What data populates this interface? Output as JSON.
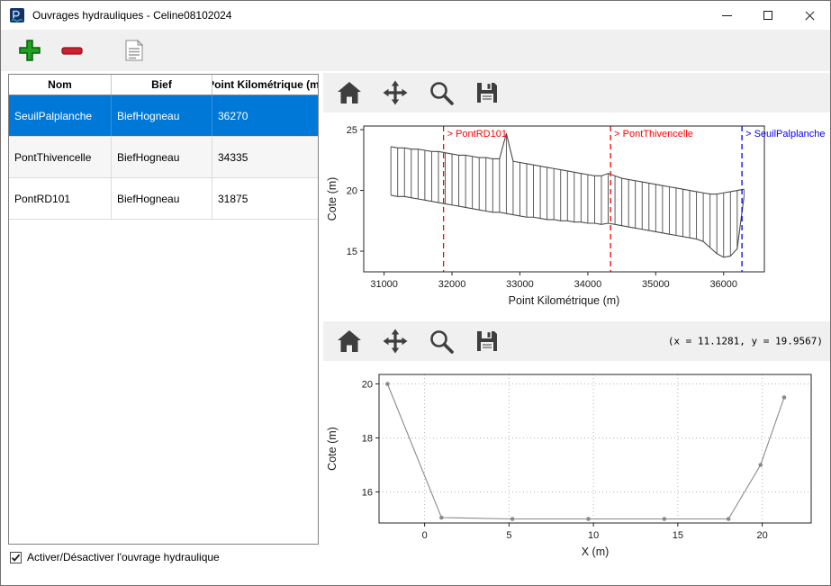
{
  "window": {
    "title": "Ouvrages hydrauliques - Celine08102024",
    "controls": [
      "minimize",
      "maximize",
      "close"
    ]
  },
  "toolbar": {
    "icons": [
      "add",
      "remove",
      "edit-list"
    ]
  },
  "table": {
    "headers": [
      "Nom",
      "Bief",
      "Point Kilométrique (m)"
    ],
    "rows": [
      {
        "nom": "SeuilPalplanche",
        "bief": "BiefHogneau",
        "pk": "36270",
        "selected": true
      },
      {
        "nom": "PontThivencelle",
        "bief": "BiefHogneau",
        "pk": "34335",
        "selected": false
      },
      {
        "nom": "PontRD101",
        "bief": "BiefHogneau",
        "pk": "31875",
        "selected": false
      }
    ]
  },
  "checkbox": {
    "label": "Activer/Désactiver l'ouvrage hydraulique",
    "checked": true
  },
  "plot_toolbar": {
    "icons": [
      "home",
      "pan",
      "zoom",
      "save"
    ],
    "readout": "(x = 11.1281,  y = 19.9567)"
  },
  "colors": {
    "selection": "#0078d7",
    "toolbar_bg": "#f0f0f0",
    "annotation_red": "#ff0000",
    "annotation_blue": "#0000ff",
    "profile_line": "#4a4a4a",
    "section_line": "#8a8a8a"
  },
  "chart_data": [
    {
      "type": "line",
      "title": "",
      "xlabel": "Point Kilométrique (m)",
      "ylabel": "Cote (m)",
      "xlim": [
        30700,
        36600
      ],
      "ylim": [
        13.3,
        25.3
      ],
      "xticks": [
        31000,
        32000,
        33000,
        34000,
        35000,
        36000
      ],
      "yticks": [
        15,
        20,
        25
      ],
      "grid": false,
      "comb": true,
      "x": [
        31100,
        31200,
        31300,
        31400,
        31500,
        31600,
        31700,
        31800,
        31900,
        32000,
        32100,
        32200,
        32300,
        32400,
        32500,
        32600,
        32700,
        32800,
        32900,
        33000,
        33100,
        33200,
        33300,
        33400,
        33500,
        33600,
        33700,
        33800,
        33900,
        34000,
        34100,
        34200,
        34300,
        34400,
        34500,
        34600,
        34700,
        34800,
        34900,
        35000,
        35100,
        35200,
        35300,
        35400,
        35500,
        35600,
        35700,
        35800,
        35900,
        36000,
        36100,
        36200,
        36300
      ],
      "series": [
        {
          "name": "top_profile",
          "color": "#4a4a4a",
          "marker": false,
          "values": [
            23.6,
            23.5,
            23.5,
            23.4,
            23.4,
            23.3,
            23.2,
            23.2,
            23.1,
            23.0,
            22.9,
            22.9,
            22.8,
            22.7,
            22.7,
            22.6,
            22.6,
            24.7,
            22.4,
            22.3,
            22.2,
            22.1,
            22.0,
            21.9,
            21.8,
            21.7,
            21.6,
            21.5,
            21.4,
            21.3,
            21.2,
            21.2,
            21.4,
            21.2,
            21.0,
            20.9,
            20.8,
            20.7,
            20.6,
            20.5,
            20.4,
            20.3,
            20.2,
            20.1,
            20.0,
            19.9,
            19.8,
            19.7,
            19.7,
            19.8,
            19.9,
            20.0,
            20.1
          ]
        },
        {
          "name": "bottom_profile",
          "color": "#4a4a4a",
          "marker": false,
          "values": [
            19.6,
            19.5,
            19.5,
            19.4,
            19.3,
            19.2,
            19.1,
            19.0,
            18.9,
            18.8,
            18.7,
            18.6,
            18.5,
            18.4,
            18.3,
            18.2,
            18.2,
            18.1,
            18.0,
            17.9,
            17.8,
            17.8,
            17.7,
            17.6,
            17.6,
            17.5,
            17.5,
            17.4,
            17.4,
            17.3,
            17.3,
            17.2,
            17.3,
            17.2,
            17.1,
            17.0,
            16.9,
            16.8,
            16.7,
            16.6,
            16.5,
            16.4,
            16.3,
            16.2,
            16.1,
            16.0,
            15.8,
            15.3,
            14.8,
            14.5,
            14.6,
            15.2,
            19.5
          ]
        }
      ],
      "annotations": [
        {
          "x": 31875,
          "label": "> PontRD101",
          "color": "#ff0000",
          "style": "dashed"
        },
        {
          "x": 34335,
          "label": "> PontThivencelle",
          "color": "#ff0000",
          "style": "dashed"
        },
        {
          "x": 36270,
          "label": "> SeuilPalplanche",
          "color": "#0000ff",
          "style": "dashed"
        }
      ]
    },
    {
      "type": "line",
      "title": "",
      "xlabel": "X (m)",
      "ylabel": "Cote (m)",
      "xlim": [
        -2.7,
        22.9
      ],
      "ylim": [
        14.85,
        20.35
      ],
      "xticks": [
        0,
        5,
        10,
        15,
        20
      ],
      "yticks": [
        16,
        18,
        20
      ],
      "grid": true,
      "comb": false,
      "series": [
        {
          "name": "cross_section",
          "color": "#8a8a8a",
          "marker": true,
          "x": [
            -2.2,
            1.0,
            5.2,
            9.7,
            14.2,
            18.0,
            19.9,
            21.3
          ],
          "values": [
            20.0,
            15.05,
            15.0,
            15.0,
            15.0,
            15.0,
            17.0,
            19.5
          ]
        }
      ]
    }
  ]
}
